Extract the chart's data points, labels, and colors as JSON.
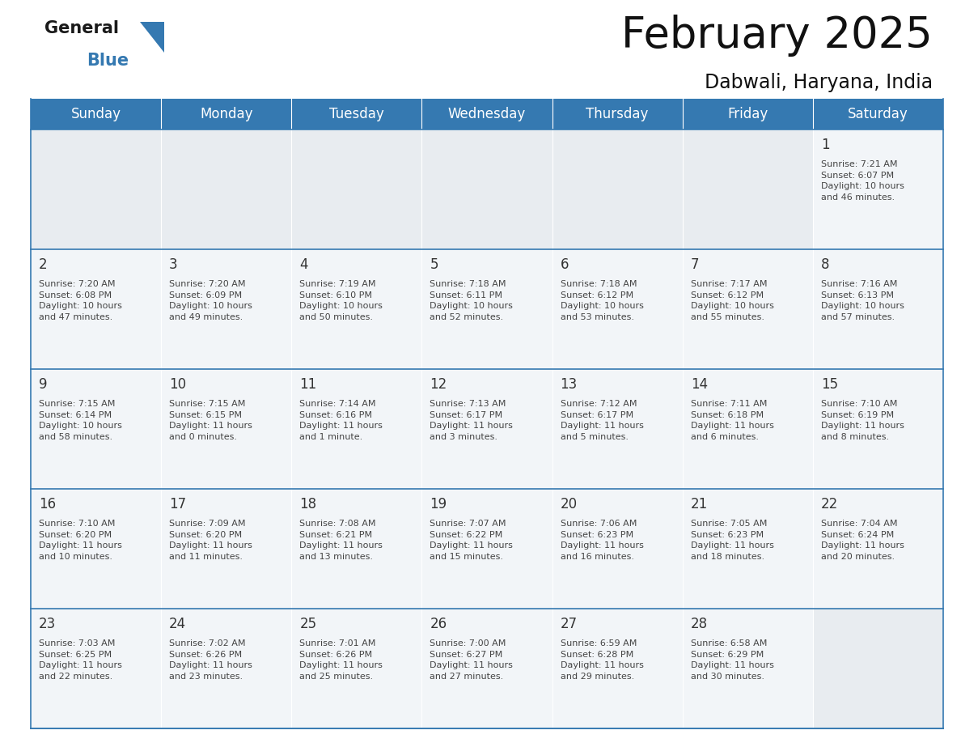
{
  "title": "February 2025",
  "subtitle": "Dabwali, Haryana, India",
  "header_color": "#3579b1",
  "header_text_color": "#ffffff",
  "cell_bg": "#f2f5f8",
  "empty_cell_bg": "#e8ecf0",
  "day_number_color": "#333333",
  "text_color": "#444444",
  "line_color": "#3579b1",
  "days_of_week": [
    "Sunday",
    "Monday",
    "Tuesday",
    "Wednesday",
    "Thursday",
    "Friday",
    "Saturday"
  ],
  "weeks": [
    [
      {
        "day": null,
        "info": null
      },
      {
        "day": null,
        "info": null
      },
      {
        "day": null,
        "info": null
      },
      {
        "day": null,
        "info": null
      },
      {
        "day": null,
        "info": null
      },
      {
        "day": null,
        "info": null
      },
      {
        "day": 1,
        "info": "Sunrise: 7:21 AM\nSunset: 6:07 PM\nDaylight: 10 hours\nand 46 minutes."
      }
    ],
    [
      {
        "day": 2,
        "info": "Sunrise: 7:20 AM\nSunset: 6:08 PM\nDaylight: 10 hours\nand 47 minutes."
      },
      {
        "day": 3,
        "info": "Sunrise: 7:20 AM\nSunset: 6:09 PM\nDaylight: 10 hours\nand 49 minutes."
      },
      {
        "day": 4,
        "info": "Sunrise: 7:19 AM\nSunset: 6:10 PM\nDaylight: 10 hours\nand 50 minutes."
      },
      {
        "day": 5,
        "info": "Sunrise: 7:18 AM\nSunset: 6:11 PM\nDaylight: 10 hours\nand 52 minutes."
      },
      {
        "day": 6,
        "info": "Sunrise: 7:18 AM\nSunset: 6:12 PM\nDaylight: 10 hours\nand 53 minutes."
      },
      {
        "day": 7,
        "info": "Sunrise: 7:17 AM\nSunset: 6:12 PM\nDaylight: 10 hours\nand 55 minutes."
      },
      {
        "day": 8,
        "info": "Sunrise: 7:16 AM\nSunset: 6:13 PM\nDaylight: 10 hours\nand 57 minutes."
      }
    ],
    [
      {
        "day": 9,
        "info": "Sunrise: 7:15 AM\nSunset: 6:14 PM\nDaylight: 10 hours\nand 58 minutes."
      },
      {
        "day": 10,
        "info": "Sunrise: 7:15 AM\nSunset: 6:15 PM\nDaylight: 11 hours\nand 0 minutes."
      },
      {
        "day": 11,
        "info": "Sunrise: 7:14 AM\nSunset: 6:16 PM\nDaylight: 11 hours\nand 1 minute."
      },
      {
        "day": 12,
        "info": "Sunrise: 7:13 AM\nSunset: 6:17 PM\nDaylight: 11 hours\nand 3 minutes."
      },
      {
        "day": 13,
        "info": "Sunrise: 7:12 AM\nSunset: 6:17 PM\nDaylight: 11 hours\nand 5 minutes."
      },
      {
        "day": 14,
        "info": "Sunrise: 7:11 AM\nSunset: 6:18 PM\nDaylight: 11 hours\nand 6 minutes."
      },
      {
        "day": 15,
        "info": "Sunrise: 7:10 AM\nSunset: 6:19 PM\nDaylight: 11 hours\nand 8 minutes."
      }
    ],
    [
      {
        "day": 16,
        "info": "Sunrise: 7:10 AM\nSunset: 6:20 PM\nDaylight: 11 hours\nand 10 minutes."
      },
      {
        "day": 17,
        "info": "Sunrise: 7:09 AM\nSunset: 6:20 PM\nDaylight: 11 hours\nand 11 minutes."
      },
      {
        "day": 18,
        "info": "Sunrise: 7:08 AM\nSunset: 6:21 PM\nDaylight: 11 hours\nand 13 minutes."
      },
      {
        "day": 19,
        "info": "Sunrise: 7:07 AM\nSunset: 6:22 PM\nDaylight: 11 hours\nand 15 minutes."
      },
      {
        "day": 20,
        "info": "Sunrise: 7:06 AM\nSunset: 6:23 PM\nDaylight: 11 hours\nand 16 minutes."
      },
      {
        "day": 21,
        "info": "Sunrise: 7:05 AM\nSunset: 6:23 PM\nDaylight: 11 hours\nand 18 minutes."
      },
      {
        "day": 22,
        "info": "Sunrise: 7:04 AM\nSunset: 6:24 PM\nDaylight: 11 hours\nand 20 minutes."
      }
    ],
    [
      {
        "day": 23,
        "info": "Sunrise: 7:03 AM\nSunset: 6:25 PM\nDaylight: 11 hours\nand 22 minutes."
      },
      {
        "day": 24,
        "info": "Sunrise: 7:02 AM\nSunset: 6:26 PM\nDaylight: 11 hours\nand 23 minutes."
      },
      {
        "day": 25,
        "info": "Sunrise: 7:01 AM\nSunset: 6:26 PM\nDaylight: 11 hours\nand 25 minutes."
      },
      {
        "day": 26,
        "info": "Sunrise: 7:00 AM\nSunset: 6:27 PM\nDaylight: 11 hours\nand 27 minutes."
      },
      {
        "day": 27,
        "info": "Sunrise: 6:59 AM\nSunset: 6:28 PM\nDaylight: 11 hours\nand 29 minutes."
      },
      {
        "day": 28,
        "info": "Sunrise: 6:58 AM\nSunset: 6:29 PM\nDaylight: 11 hours\nand 30 minutes."
      },
      {
        "day": null,
        "info": null
      }
    ]
  ],
  "fig_width": 11.88,
  "fig_height": 9.18,
  "dpi": 100
}
